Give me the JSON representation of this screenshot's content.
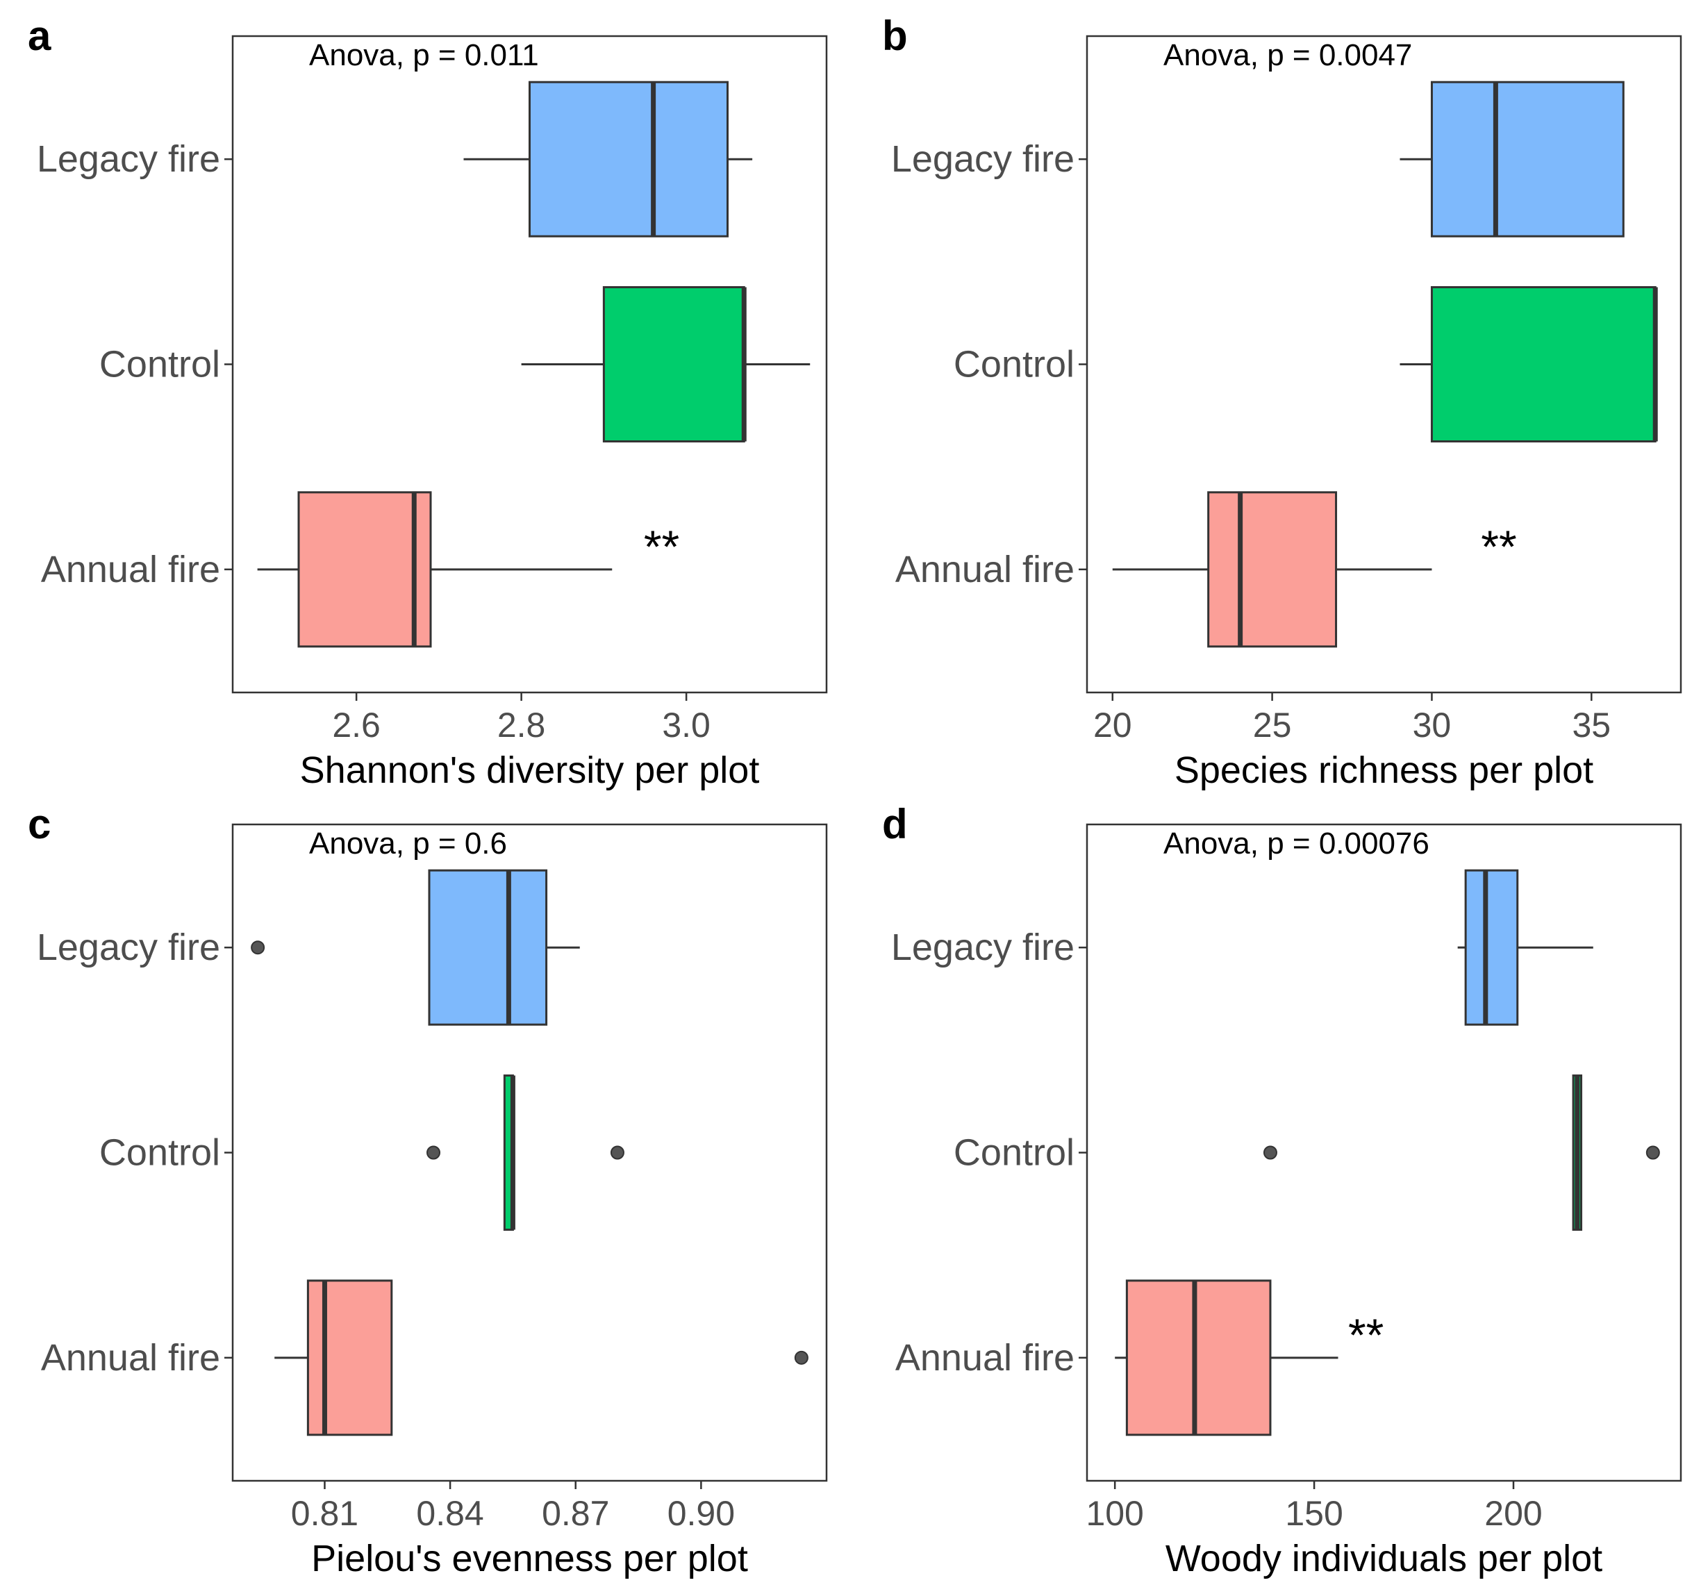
{
  "chart_data": [
    {
      "type": "box",
      "panel": "a",
      "annotation": "Anova, p = 0.011",
      "xlabel": "Shannon's diversity per plot",
      "xlim": [
        2.45,
        3.17
      ],
      "xticks": [
        2.6,
        2.8,
        3.0
      ],
      "xtick_labels": [
        "2.6",
        "2.8",
        "3.0"
      ],
      "categories": [
        "Legacy fire",
        "Control",
        "Annual fire"
      ],
      "boxes": [
        {
          "category": "Legacy fire",
          "whisker_low": 2.73,
          "q1": 2.81,
          "median": 2.96,
          "q3": 3.05,
          "whisker_high": 3.08,
          "outliers": [],
          "color": "#7EB9FC"
        },
        {
          "category": "Control",
          "whisker_low": 2.8,
          "q1": 2.9,
          "median": 3.07,
          "q3": 3.07,
          "whisker_high": 3.15,
          "outliers": [],
          "color": "#00CD6C"
        },
        {
          "category": "Annual fire",
          "whisker_low": 2.48,
          "q1": 2.53,
          "median": 2.67,
          "q3": 2.69,
          "whisker_high": 2.91,
          "outliers": [],
          "color": "#FB9F98"
        }
      ],
      "significance": [
        {
          "category": "Annual fire",
          "label": "**",
          "x": 2.97
        }
      ]
    },
    {
      "type": "box",
      "panel": "b",
      "annotation": "Anova, p = 0.0047",
      "xlabel": "Species richness per plot",
      "xlim": [
        19.2,
        37.8
      ],
      "xticks": [
        20,
        25,
        30,
        35
      ],
      "xtick_labels": [
        "20",
        "25",
        "30",
        "35"
      ],
      "categories": [
        "Legacy fire",
        "Control",
        "Annual fire"
      ],
      "boxes": [
        {
          "category": "Legacy fire",
          "whisker_low": 29,
          "q1": 30,
          "median": 32,
          "q3": 36,
          "whisker_high": 36,
          "outliers": [],
          "color": "#7EB9FC"
        },
        {
          "category": "Control",
          "whisker_low": 29,
          "q1": 30,
          "median": 37,
          "q3": 37,
          "whisker_high": 37,
          "outliers": [],
          "color": "#00CD6C"
        },
        {
          "category": "Annual fire",
          "whisker_low": 20,
          "q1": 23,
          "median": 24,
          "q3": 27,
          "whisker_high": 30,
          "outliers": [],
          "color": "#FB9F98"
        }
      ],
      "significance": [
        {
          "category": "Annual fire",
          "label": "**",
          "x": 32.1
        }
      ]
    },
    {
      "type": "box",
      "panel": "c",
      "annotation": "Anova, p = 0.6",
      "xlabel": "Pielou's evenness per plot",
      "xlim": [
        0.788,
        0.93
      ],
      "xticks": [
        0.81,
        0.84,
        0.87,
        0.9
      ],
      "xtick_labels": [
        "0.81",
        "0.84",
        "0.87",
        "0.90"
      ],
      "categories": [
        "Legacy fire",
        "Control",
        "Annual fire"
      ],
      "boxes": [
        {
          "category": "Legacy fire",
          "whisker_low": 0.835,
          "q1": 0.835,
          "median": 0.854,
          "q3": 0.863,
          "whisker_high": 0.871,
          "outliers": [
            0.794
          ],
          "color": "#7EB9FC"
        },
        {
          "category": "Control",
          "whisker_low": 0.853,
          "q1": 0.853,
          "median": 0.855,
          "q3": 0.855,
          "whisker_high": 0.855,
          "outliers": [
            0.836,
            0.88
          ],
          "color": "#00CD6C"
        },
        {
          "category": "Annual fire",
          "whisker_low": 0.798,
          "q1": 0.806,
          "median": 0.81,
          "q3": 0.826,
          "whisker_high": 0.826,
          "outliers": [
            0.924
          ],
          "color": "#FB9F98"
        }
      ],
      "significance": []
    },
    {
      "type": "box",
      "panel": "d",
      "annotation": "Anova, p = 0.00076",
      "xlabel": "Woody individuals per plot",
      "xlim": [
        93,
        242
      ],
      "xticks": [
        100,
        150,
        200
      ],
      "xtick_labels": [
        "100",
        "150",
        "200"
      ],
      "categories": [
        "Legacy fire",
        "Control",
        "Annual fire"
      ],
      "boxes": [
        {
          "category": "Legacy fire",
          "whisker_low": 186,
          "q1": 188,
          "median": 193,
          "q3": 201,
          "whisker_high": 220,
          "outliers": [],
          "color": "#7EB9FC"
        },
        {
          "category": "Control",
          "whisker_low": 215,
          "q1": 215,
          "median": 216,
          "q3": 217,
          "whisker_high": 217,
          "outliers": [
            139,
            235
          ],
          "color": "#00CD6C"
        },
        {
          "category": "Annual fire",
          "whisker_low": 100,
          "q1": 103,
          "median": 120,
          "q3": 139,
          "whisker_high": 156,
          "outliers": [],
          "color": "#FB9F98"
        }
      ],
      "significance": [
        {
          "category": "Annual fire",
          "label": "**",
          "x": 163
        }
      ]
    }
  ]
}
